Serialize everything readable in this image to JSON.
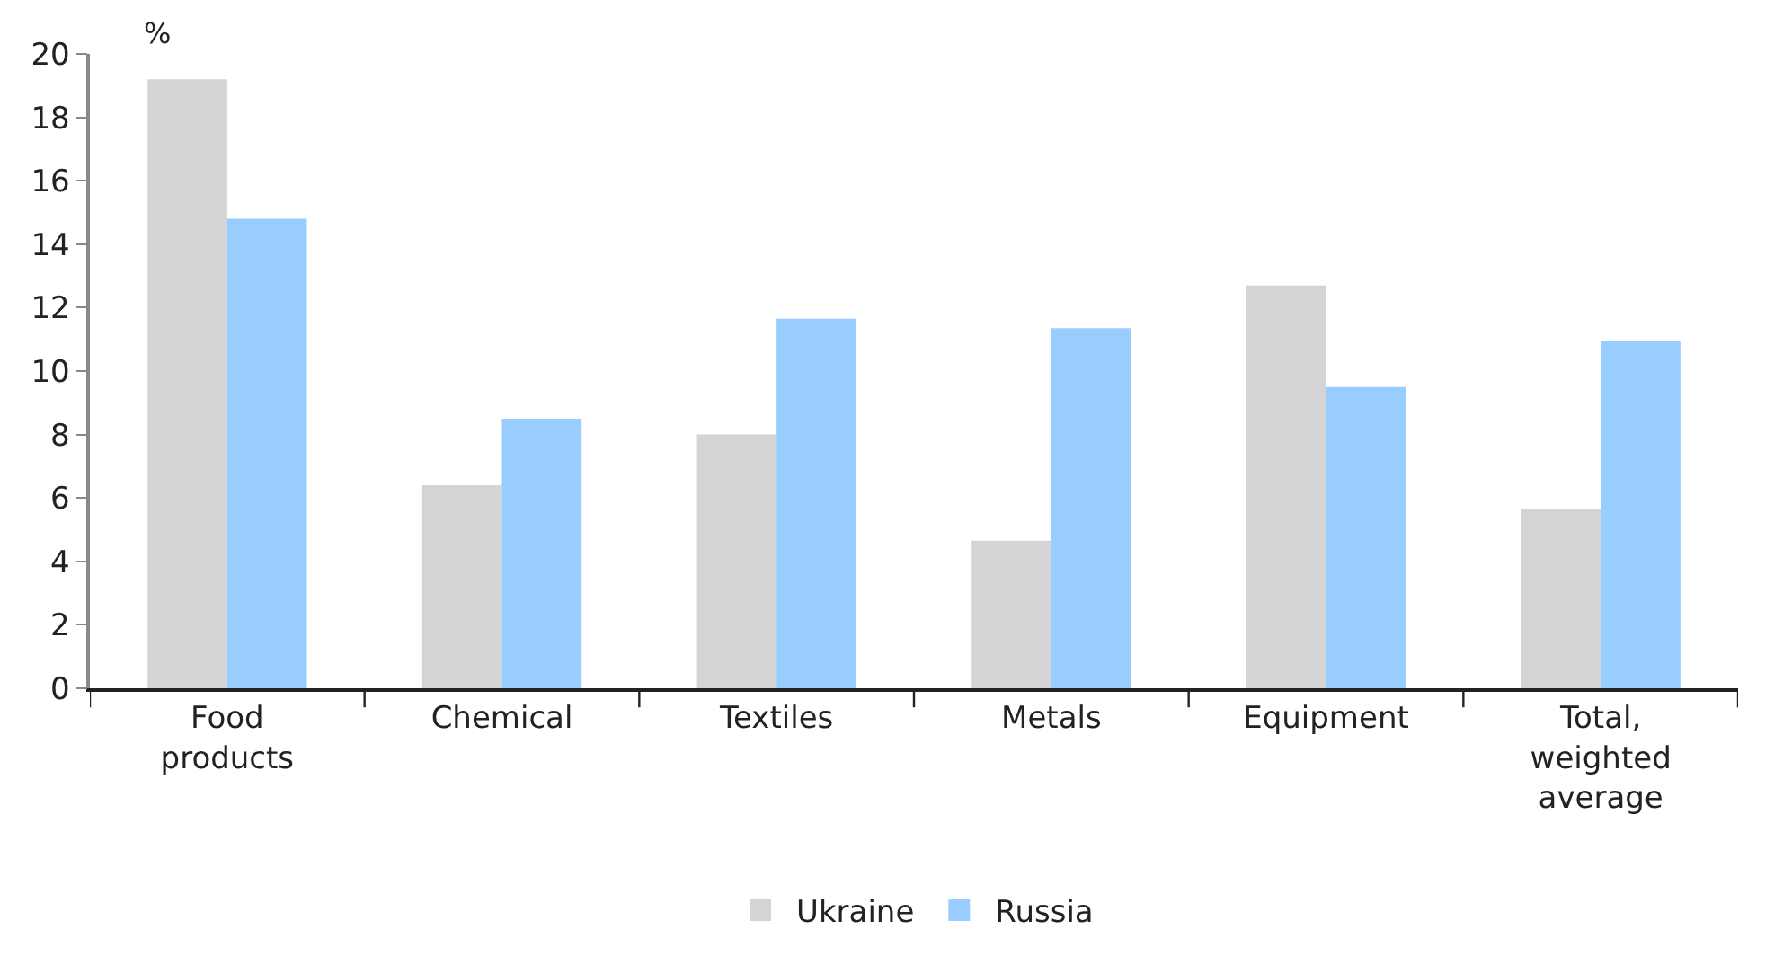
{
  "chart_data": {
    "type": "bar",
    "ylabel": "%",
    "categories": [
      "Food products",
      "Chemical",
      "Textiles",
      "Metals",
      "Equipment",
      "Total, weighted average"
    ],
    "series": [
      {
        "name": "Ukraine",
        "color": "#d4d4d4",
        "values": [
          19.2,
          6.4,
          8.0,
          4.65,
          12.7,
          5.65
        ]
      },
      {
        "name": "Russia",
        "color": "#99ccff",
        "values": [
          14.8,
          8.5,
          11.65,
          11.35,
          9.5,
          10.95
        ]
      }
    ],
    "ylim": [
      0,
      20
    ],
    "yticks": [
      0,
      2,
      4,
      6,
      8,
      10,
      12,
      14,
      16,
      18,
      20
    ],
    "legend": "bottom"
  }
}
